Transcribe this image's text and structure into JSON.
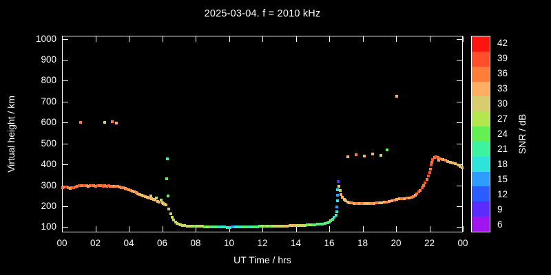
{
  "title": "2025-03-04. f = 2010 kHz",
  "chart_data": {
    "type": "scatter",
    "title": "2025-03-04. f = 2010 kHz",
    "xlabel": "UT Time / hrs",
    "ylabel": "Virtual height / km",
    "colorbar_label": "SNR / dB",
    "xlim": [
      0,
      24
    ],
    "ylim": [
      100,
      1000
    ],
    "y_display": [
      75,
      1015
    ],
    "grid": false,
    "y_ticks": [
      100,
      200,
      300,
      400,
      500,
      600,
      700,
      800,
      900,
      1000
    ],
    "x_ticks": [
      {
        "h": 0,
        "label": "00"
      },
      {
        "h": 2,
        "label": "02"
      },
      {
        "h": 4,
        "label": "04"
      },
      {
        "h": 6,
        "label": "06"
      },
      {
        "h": 8,
        "label": "08"
      },
      {
        "h": 10,
        "label": "10"
      },
      {
        "h": 12,
        "label": "12"
      },
      {
        "h": 14,
        "label": "14"
      },
      {
        "h": 16,
        "label": "16"
      },
      {
        "h": 18,
        "label": "18"
      },
      {
        "h": 20,
        "label": "20"
      },
      {
        "h": 22,
        "label": "22"
      },
      {
        "h": 24,
        "label": "00"
      }
    ],
    "colorbar": {
      "values": [
        42,
        39,
        36,
        33,
        30,
        27,
        24,
        21,
        18,
        15,
        12,
        9,
        6
      ],
      "colors": [
        "#ff1410",
        "#ff4f2a",
        "#ff7d38",
        "#ffae62",
        "#d8cc6e",
        "#b2e84e",
        "#62f052",
        "#3cf4a0",
        "#2ce4da",
        "#2f9cff",
        "#2b5cff",
        "#5b2bff",
        "#a016f0"
      ]
    },
    "points": [
      [
        0.05,
        288,
        36
      ],
      [
        0.15,
        291,
        36
      ],
      [
        0.26,
        293,
        39
      ],
      [
        0.37,
        289,
        36
      ],
      [
        0.48,
        286,
        33
      ],
      [
        0.59,
        287,
        36
      ],
      [
        0.7,
        289,
        39
      ],
      [
        0.81,
        292,
        36
      ],
      [
        0.92,
        295,
        36
      ],
      [
        1.03,
        297,
        39
      ],
      [
        1.14,
        298,
        36
      ],
      [
        1.25,
        297,
        36
      ],
      [
        1.36,
        298,
        39
      ],
      [
        1.47,
        297,
        36
      ],
      [
        1.58,
        296,
        33
      ],
      [
        1.69,
        297,
        36
      ],
      [
        1.8,
        298,
        39
      ],
      [
        1.91,
        297,
        36
      ],
      [
        2.02,
        296,
        36
      ],
      [
        2.13,
        297,
        39
      ],
      [
        2.24,
        298,
        36
      ],
      [
        2.35,
        297,
        36
      ],
      [
        2.46,
        296,
        39
      ],
      [
        2.57,
        297,
        36
      ],
      [
        2.68,
        296,
        36
      ],
      [
        2.79,
        297,
        39
      ],
      [
        2.9,
        296,
        36
      ],
      [
        3.01,
        295,
        36
      ],
      [
        3.12,
        296,
        33
      ],
      [
        3.23,
        296,
        36
      ],
      [
        3.34,
        294,
        36
      ],
      [
        3.45,
        292,
        33
      ],
      [
        3.56,
        290,
        36
      ],
      [
        3.67,
        288,
        36
      ],
      [
        3.78,
        285,
        33
      ],
      [
        3.89,
        282,
        36
      ],
      [
        4.0,
        279,
        33
      ],
      [
        4.11,
        276,
        36
      ],
      [
        4.22,
        272,
        33
      ],
      [
        4.33,
        268,
        33
      ],
      [
        4.44,
        264,
        36
      ],
      [
        4.55,
        260,
        33
      ],
      [
        4.66,
        256,
        33
      ],
      [
        4.77,
        252,
        30
      ],
      [
        4.88,
        249,
        33
      ],
      [
        4.99,
        246,
        33
      ],
      [
        5.1,
        243,
        30
      ],
      [
        5.21,
        240,
        33
      ],
      [
        5.3,
        248,
        30
      ],
      [
        5.38,
        236,
        33
      ],
      [
        5.47,
        232,
        30
      ],
      [
        5.56,
        228,
        33
      ],
      [
        5.65,
        240,
        27
      ],
      [
        5.74,
        224,
        30
      ],
      [
        5.83,
        220,
        33
      ],
      [
        5.92,
        230,
        27
      ],
      [
        6.0,
        216,
        33
      ],
      [
        6.08,
        212,
        30
      ],
      [
        6.16,
        209,
        33
      ],
      [
        6.24,
        206,
        30
      ],
      [
        6.28,
        332,
        24
      ],
      [
        6.31,
        428,
        21
      ],
      [
        6.34,
        248,
        24
      ],
      [
        6.4,
        186,
        30
      ],
      [
        6.5,
        164,
        30
      ],
      [
        6.6,
        146,
        27
      ],
      [
        6.7,
        133,
        30
      ],
      [
        6.8,
        124,
        27
      ],
      [
        6.9,
        117,
        30
      ],
      [
        7.0,
        113,
        27
      ],
      [
        7.1,
        110,
        30
      ],
      [
        7.2,
        108,
        27
      ],
      [
        7.35,
        107,
        30
      ],
      [
        7.5,
        106,
        27
      ],
      [
        7.65,
        105,
        30
      ],
      [
        7.8,
        104,
        27
      ],
      [
        7.95,
        104,
        24
      ],
      [
        8.1,
        103,
        27
      ],
      [
        8.25,
        103,
        30
      ],
      [
        8.4,
        103,
        27
      ],
      [
        8.55,
        102,
        24
      ],
      [
        8.7,
        102,
        27
      ],
      [
        8.85,
        101,
        24
      ],
      [
        9.0,
        101,
        21
      ],
      [
        9.15,
        100,
        24
      ],
      [
        9.3,
        100,
        21
      ],
      [
        9.45,
        100,
        18
      ],
      [
        9.6,
        100,
        21
      ],
      [
        9.75,
        100,
        18
      ],
      [
        9.9,
        99,
        21
      ],
      [
        10.05,
        99,
        18
      ],
      [
        10.2,
        100,
        15
      ],
      [
        10.35,
        100,
        18
      ],
      [
        10.5,
        100,
        21
      ],
      [
        10.65,
        101,
        18
      ],
      [
        10.8,
        101,
        21
      ],
      [
        10.95,
        100,
        24
      ],
      [
        11.1,
        100,
        21
      ],
      [
        11.25,
        101,
        18
      ],
      [
        11.4,
        101,
        21
      ],
      [
        11.55,
        102,
        24
      ],
      [
        11.7,
        102,
        21
      ],
      [
        11.85,
        103,
        24
      ],
      [
        12.0,
        103,
        27
      ],
      [
        12.15,
        103,
        24
      ],
      [
        12.3,
        104,
        27
      ],
      [
        12.45,
        104,
        24
      ],
      [
        12.6,
        104,
        27
      ],
      [
        12.75,
        105,
        30
      ],
      [
        12.9,
        105,
        27
      ],
      [
        13.05,
        105,
        30
      ],
      [
        13.2,
        106,
        27
      ],
      [
        13.35,
        106,
        33
      ],
      [
        13.5,
        106,
        30
      ],
      [
        13.65,
        107,
        33
      ],
      [
        13.8,
        107,
        30
      ],
      [
        13.95,
        107,
        33
      ],
      [
        14.1,
        108,
        30
      ],
      [
        14.25,
        108,
        27
      ],
      [
        14.4,
        108,
        30
      ],
      [
        14.55,
        109,
        27
      ],
      [
        14.7,
        110,
        24
      ],
      [
        14.85,
        110,
        27
      ],
      [
        15.0,
        111,
        24
      ],
      [
        15.15,
        112,
        21
      ],
      [
        15.3,
        113,
        24
      ],
      [
        15.45,
        114,
        21
      ],
      [
        15.6,
        116,
        24
      ],
      [
        15.75,
        118,
        21
      ],
      [
        15.9,
        121,
        24
      ],
      [
        16.0,
        125,
        21
      ],
      [
        16.1,
        131,
        24
      ],
      [
        16.2,
        138,
        21
      ],
      [
        16.3,
        147,
        18
      ],
      [
        16.4,
        158,
        21
      ],
      [
        16.45,
        172,
        18
      ],
      [
        16.47,
        198,
        15
      ],
      [
        16.49,
        226,
        18
      ],
      [
        16.5,
        252,
        15
      ],
      [
        16.51,
        280,
        18
      ],
      [
        16.53,
        318,
        9
      ],
      [
        16.58,
        296,
        30
      ],
      [
        16.65,
        274,
        30
      ],
      [
        16.72,
        256,
        33
      ],
      [
        16.8,
        243,
        33
      ],
      [
        16.9,
        233,
        30
      ],
      [
        17.0,
        226,
        33
      ],
      [
        17.1,
        221,
        30
      ],
      [
        17.2,
        217,
        33
      ],
      [
        17.35,
        215,
        36
      ],
      [
        17.5,
        213,
        33
      ],
      [
        17.65,
        212,
        36
      ],
      [
        17.8,
        212,
        33
      ],
      [
        17.95,
        213,
        36
      ],
      [
        18.1,
        213,
        33
      ],
      [
        18.25,
        213,
        30
      ],
      [
        18.4,
        212,
        33
      ],
      [
        18.55,
        213,
        36
      ],
      [
        18.7,
        214,
        33
      ],
      [
        18.85,
        215,
        36
      ],
      [
        19.0,
        216,
        33
      ],
      [
        19.15,
        217,
        30
      ],
      [
        19.3,
        218,
        33
      ],
      [
        19.45,
        220,
        36
      ],
      [
        19.6,
        222,
        33
      ],
      [
        17.1,
        437,
        33
      ],
      [
        17.6,
        445,
        36
      ],
      [
        18.1,
        440,
        33
      ],
      [
        18.6,
        449,
        33
      ],
      [
        19.1,
        442,
        30
      ],
      [
        19.45,
        468,
        24
      ],
      [
        20.05,
        725,
        33
      ],
      [
        19.75,
        226,
        33
      ],
      [
        19.9,
        230,
        36
      ],
      [
        20.05,
        233,
        33
      ],
      [
        20.2,
        235,
        33
      ],
      [
        20.35,
        236,
        36
      ],
      [
        20.5,
        237,
        33
      ],
      [
        20.65,
        238,
        36
      ],
      [
        20.8,
        240,
        33
      ],
      [
        20.95,
        243,
        36
      ],
      [
        21.05,
        247,
        36
      ],
      [
        21.15,
        253,
        33
      ],
      [
        21.25,
        260,
        36
      ],
      [
        21.35,
        268,
        39
      ],
      [
        21.45,
        277,
        36
      ],
      [
        21.55,
        288,
        39
      ],
      [
        21.65,
        300,
        36
      ],
      [
        21.75,
        313,
        39
      ],
      [
        21.85,
        327,
        36
      ],
      [
        21.95,
        343,
        39
      ],
      [
        22.0,
        360,
        39
      ],
      [
        22.05,
        378,
        36
      ],
      [
        22.1,
        396,
        39
      ],
      [
        22.15,
        411,
        36
      ],
      [
        22.2,
        424,
        39
      ],
      [
        22.3,
        432,
        36
      ],
      [
        22.4,
        436,
        39
      ],
      [
        22.5,
        433,
        36
      ],
      [
        22.55,
        421,
        33
      ],
      [
        22.65,
        428,
        36
      ],
      [
        22.8,
        424,
        33
      ],
      [
        22.95,
        420,
        36
      ],
      [
        23.1,
        415,
        33
      ],
      [
        23.25,
        411,
        30
      ],
      [
        23.4,
        408,
        33
      ],
      [
        23.55,
        404,
        30
      ],
      [
        23.7,
        398,
        33
      ],
      [
        23.85,
        390,
        30
      ],
      [
        23.95,
        383,
        33
      ],
      [
        1.1,
        600,
        36
      ],
      [
        2.55,
        600,
        30
      ],
      [
        3.0,
        603,
        36
      ],
      [
        3.25,
        599,
        33
      ]
    ]
  }
}
